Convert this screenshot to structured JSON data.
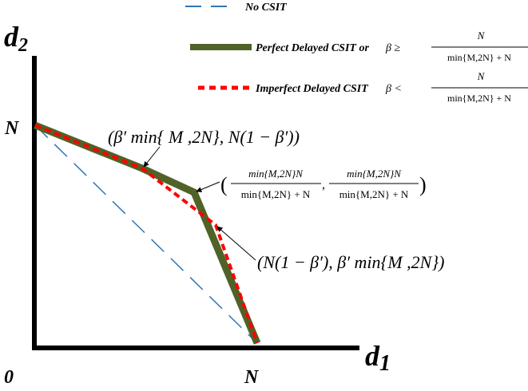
{
  "legend": {
    "no_csit": "No CSIT",
    "perfect": "Perfect Delayed CSIT  or",
    "imperfect": "Imperfect Delayed CSIT",
    "perfect_cond": "β ≥",
    "imperfect_cond": "β <",
    "frac_num": "N",
    "frac_den": "min{M,2N} + N"
  },
  "axes": {
    "y_label_main": "d",
    "y_label_sub": "2",
    "x_label_main": "d",
    "x_label_sub": "1",
    "origin": "0",
    "y_tick": "N",
    "x_tick": "N"
  },
  "annotations": {
    "p1": "(β′ min{ M ,2N}, N(1 − β′))",
    "p2_num": "min{M,2N}N",
    "p2_den": "min{M,2N} + N",
    "p3": "(N(1 − β′), β′ min{M ,2N})"
  },
  "colors": {
    "no_csit": "#2e75b6",
    "perfect": "#4f6228",
    "imperfect": "#ff0000",
    "axes": "#000000"
  }
}
